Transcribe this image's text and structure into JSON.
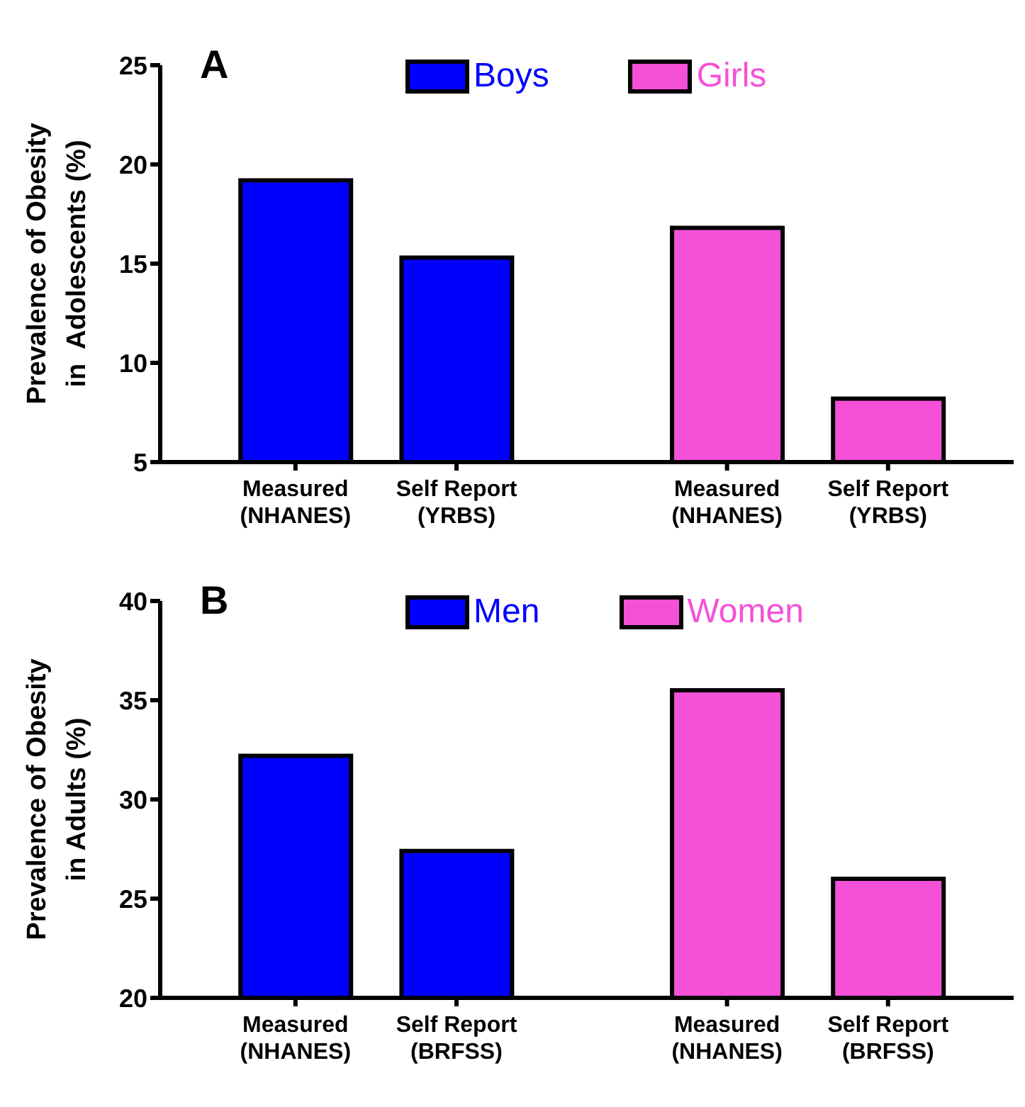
{
  "chart_data": [
    {
      "type": "bar",
      "title": "A",
      "ylabel": "Prevalence of Obesity\nin  Adolescents (%)",
      "categories": [
        "Measured\n(NHANES)",
        "Self Report\n(YRBS)",
        "Measured\n(NHANES)",
        "Self Report\n(YRBS)"
      ],
      "series": [
        {
          "name": "Boys",
          "color": "#0000ff",
          "values": [
            19.2,
            15.3,
            null,
            null
          ]
        },
        {
          "name": "Girls",
          "color": "#f550d8",
          "values": [
            null,
            null,
            16.8,
            8.2
          ]
        }
      ],
      "ylim": [
        5,
        25
      ],
      "yticks": [
        5,
        10,
        15,
        20,
        25
      ],
      "grid": false,
      "legend": "top"
    },
    {
      "type": "bar",
      "title": "B",
      "ylabel": "Prevalence of Obesity\nin Adults (%)",
      "categories": [
        "Measured\n(NHANES)",
        "Self Report\n(BRFSS)",
        "Measured\n(NHANES)",
        "Self Report\n(BRFSS)"
      ],
      "series": [
        {
          "name": "Men",
          "color": "#0000ff",
          "values": [
            32.2,
            27.4,
            null,
            null
          ]
        },
        {
          "name": "Women",
          "color": "#f550d8",
          "values": [
            null,
            null,
            35.5,
            26.0
          ]
        }
      ],
      "ylim": [
        20,
        40
      ],
      "yticks": [
        20,
        25,
        30,
        35,
        40
      ],
      "grid": false,
      "legend": "top"
    }
  ]
}
